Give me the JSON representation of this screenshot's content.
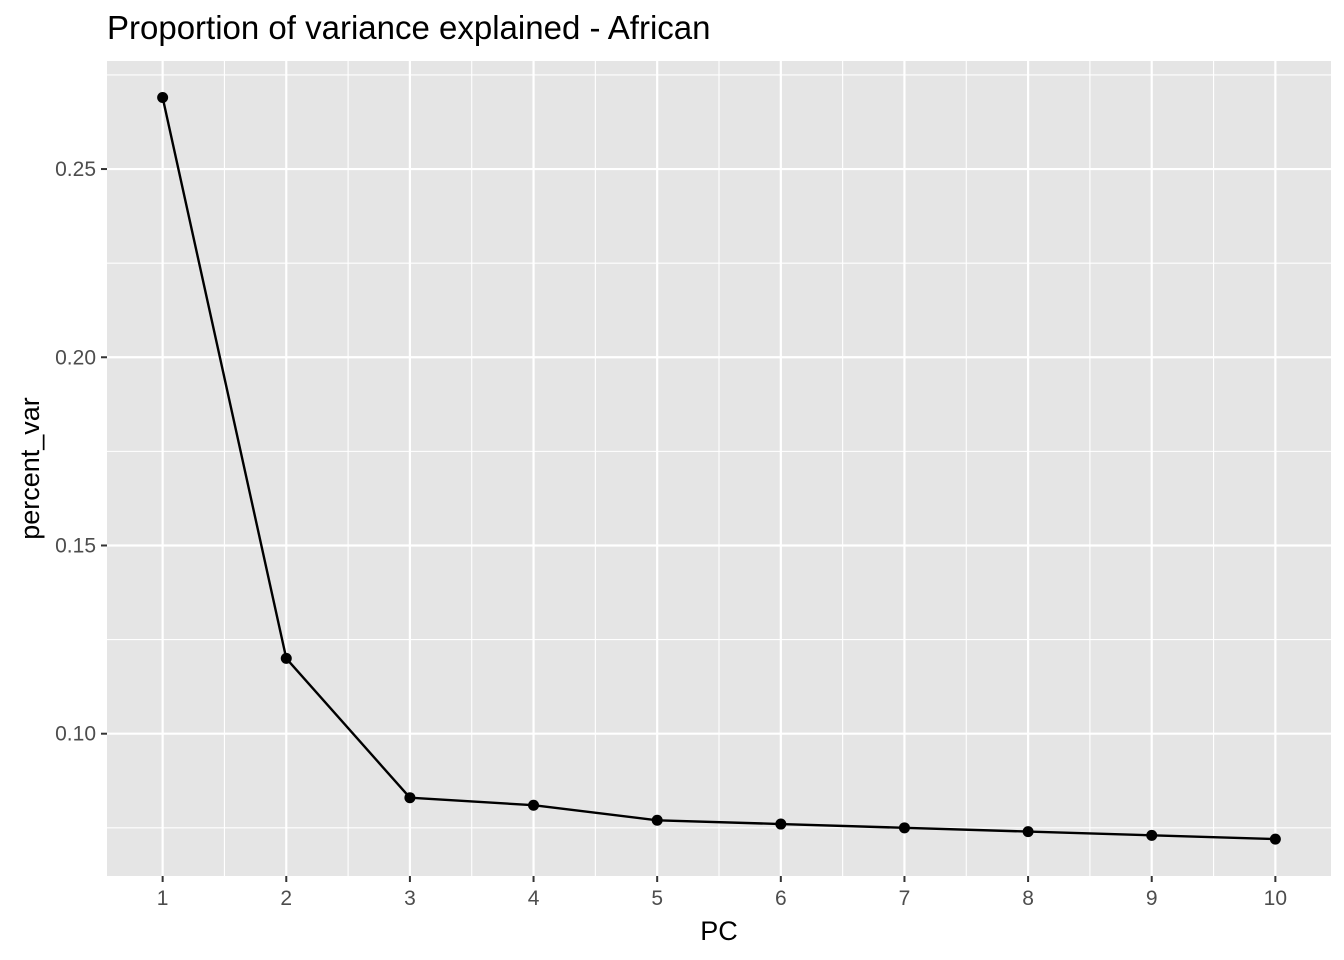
{
  "chart_data": {
    "type": "line",
    "title": "Proportion of variance explained - African",
    "xlabel": "PC",
    "ylabel": "percent_var",
    "x": [
      1,
      2,
      3,
      4,
      5,
      6,
      7,
      8,
      9,
      10
    ],
    "series": [
      {
        "values": [
          0.269,
          0.12,
          0.083,
          0.081,
          0.077,
          0.076,
          0.075,
          0.074,
          0.073,
          0.072
        ]
      }
    ],
    "xlim": [
      0.55,
      10.45
    ],
    "ylim": [
      0.0622,
      0.2787
    ],
    "x_ticks": [
      "1",
      "2",
      "3",
      "4",
      "5",
      "6",
      "7",
      "8",
      "9",
      "10"
    ],
    "y_ticks": [
      "0.10",
      "0.15",
      "0.20",
      "0.25"
    ],
    "grid": true,
    "legend": "none",
    "colors": {
      "panel_bg": "#e5e5e5",
      "grid": "#ffffff",
      "line": "#000000",
      "tick_text": "#4d4d4d"
    }
  }
}
